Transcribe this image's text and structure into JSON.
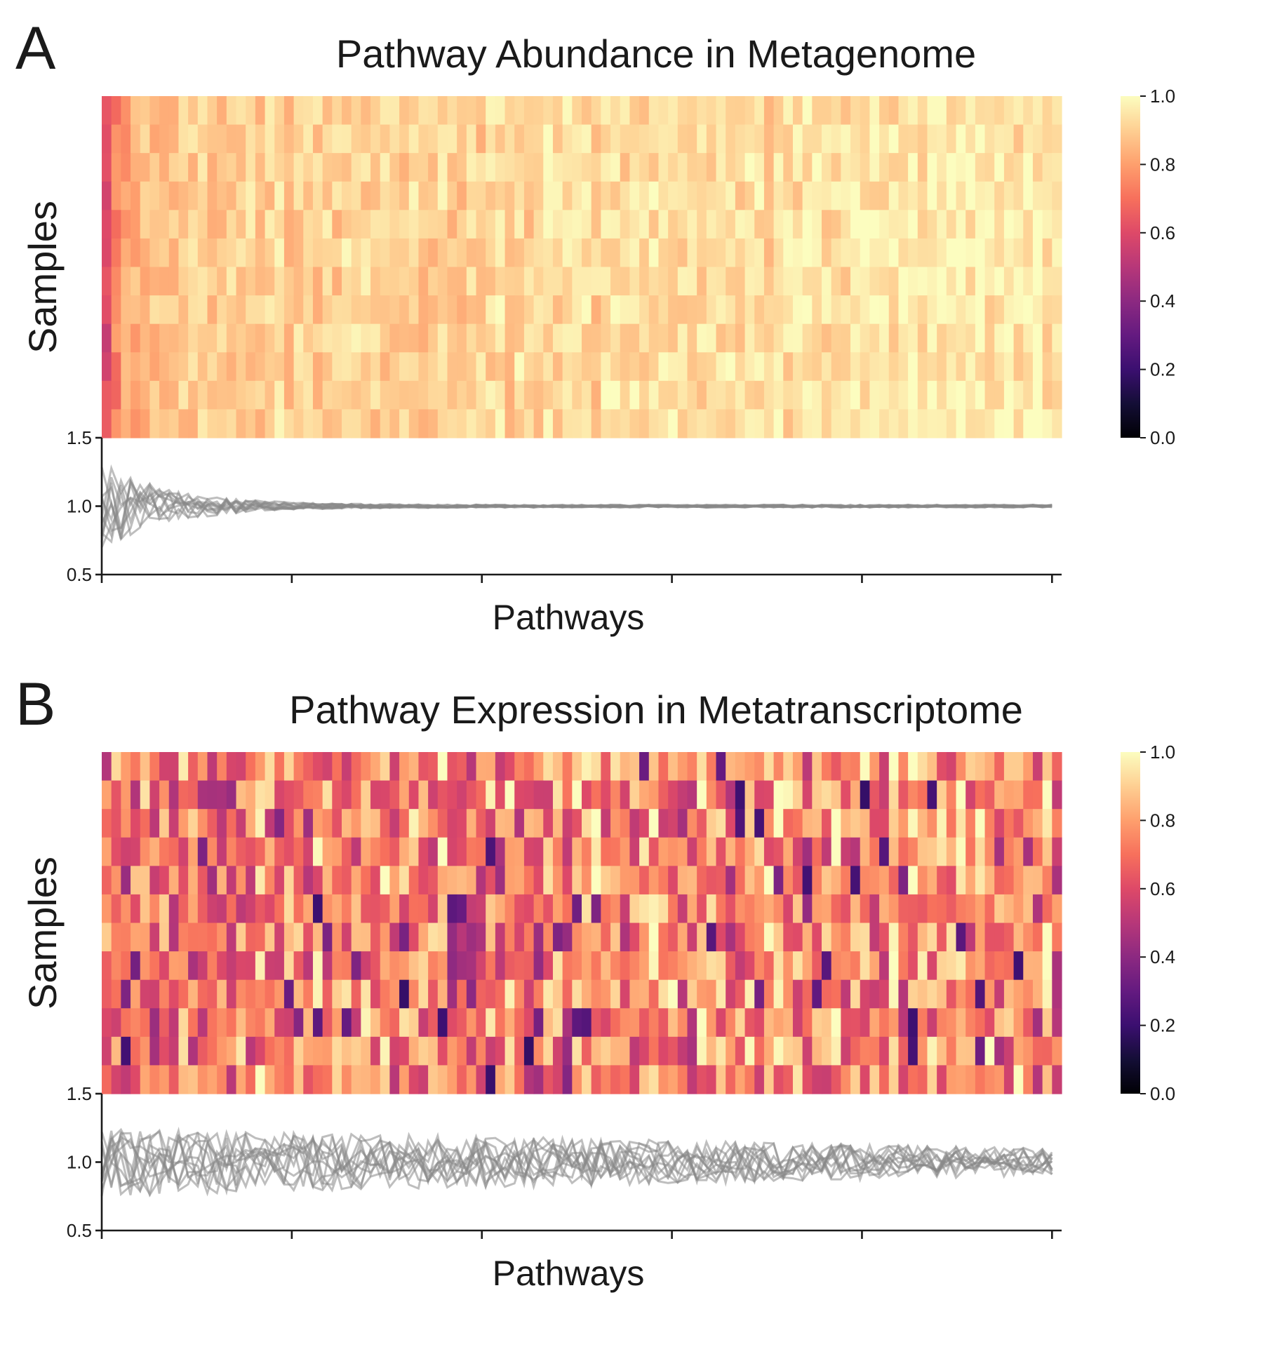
{
  "chart_data": [
    {
      "panel_label": "A",
      "type": "heatmap",
      "title": "Pathway Abundance in Metagenome",
      "ylabel": "Samples",
      "xlabel": "Pathways",
      "n_samples": 12,
      "n_pathways": 100,
      "colormap": "magma",
      "colorbar": {
        "range": [
          0.0,
          1.0
        ],
        "ticks": [
          "0.0",
          "0.2",
          "0.4",
          "0.6",
          "0.8",
          "1.0"
        ]
      },
      "pattern": {
        "description_values": "heatmap values mostly 0.85-1.0; first few pathway columns lower (0.55-0.8)",
        "first_columns": [
          0.58,
          0.74,
          0.8,
          0.84,
          0.86,
          0.87
        ],
        "typical_min": 0.83,
        "typical_max": 1.0,
        "trend_toward_end": 0.95
      },
      "line_subplot": {
        "type": "line",
        "series_count": 12,
        "ylim": [
          0.5,
          1.5
        ],
        "yticks": [
          "0.5",
          "1.0",
          "1.5"
        ],
        "center": 1.0,
        "spread_start": 0.32,
        "spread_end": 0.01,
        "color": "#888888",
        "x_ticks_count": 6
      }
    },
    {
      "panel_label": "B",
      "type": "heatmap",
      "title": "Pathway Expression in Metatranscriptome",
      "ylabel": "Samples",
      "xlabel": "Pathways",
      "n_samples": 12,
      "n_pathways": 100,
      "colormap": "magma",
      "colorbar": {
        "range": [
          0.0,
          1.0
        ],
        "ticks": [
          "0.0",
          "0.2",
          "0.4",
          "0.6",
          "0.8",
          "1.0"
        ]
      },
      "pattern": {
        "typical_min": 0.42,
        "typical_max": 1.0,
        "dark_cells_min": 0.18,
        "trend_toward_end": 0.78
      },
      "line_subplot": {
        "type": "line",
        "series_count": 12,
        "ylim": [
          0.5,
          1.5
        ],
        "yticks": [
          "0.5",
          "1.0",
          "1.5"
        ],
        "center": 1.0,
        "spread_start": 0.25,
        "spread_end": 0.1,
        "color": "#888888",
        "x_ticks_count": 6
      }
    }
  ]
}
